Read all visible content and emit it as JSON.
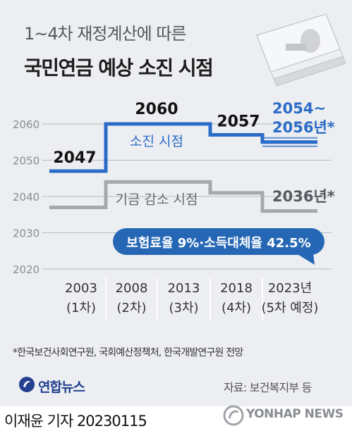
{
  "header": {
    "title_line1": "1~4차 재정계산에 따른",
    "title_line2": "국민연금 예상 소진 시점"
  },
  "chart_data": {
    "type": "line",
    "title": "국민연금 예상 소진 시점",
    "subtitle": "1~4차 재정계산에 따른",
    "categories": [
      "2003",
      "2008",
      "2013",
      "2018",
      "2023년"
    ],
    "category_sub": [
      "(1차)",
      "(2차)",
      "(3차)",
      "(4차)",
      "(5차 예정)"
    ],
    "yticks": [
      2060,
      2050,
      2040,
      2030,
      2020
    ],
    "ylim": [
      2020,
      2065
    ],
    "grid": true,
    "series": [
      {
        "name": "소진 시점",
        "values": [
          2047,
          2060,
          2060,
          2057,
          2055
        ],
        "color": "#2a6cc8",
        "value_labels": [
          "2047",
          "2060",
          "",
          "2057",
          "2054~ 2056년*"
        ]
      },
      {
        "name": "기금 감소 시점",
        "values": [
          2037,
          2044,
          2044,
          2041,
          2036
        ],
        "color": "#a6a8ab",
        "value_labels": [
          "",
          "",
          "",
          "",
          "2036년*"
        ]
      }
    ],
    "annotation": "보험료율 9%·소득대체율 42.5%"
  },
  "footnote": "*한국보건사회연구원, 국회예산정책처, 한국개발연구원 전망",
  "logo": "연합뉴스",
  "source": "자료: 보건복지부 등",
  "reporter": "이재윤 기자  20230115",
  "watermark": "YONHAP NEWS",
  "colors": {
    "panel": "#eceef1",
    "blue": "#2a6cc8",
    "gray": "#a6a8ab",
    "callout": "#2567b5"
  }
}
